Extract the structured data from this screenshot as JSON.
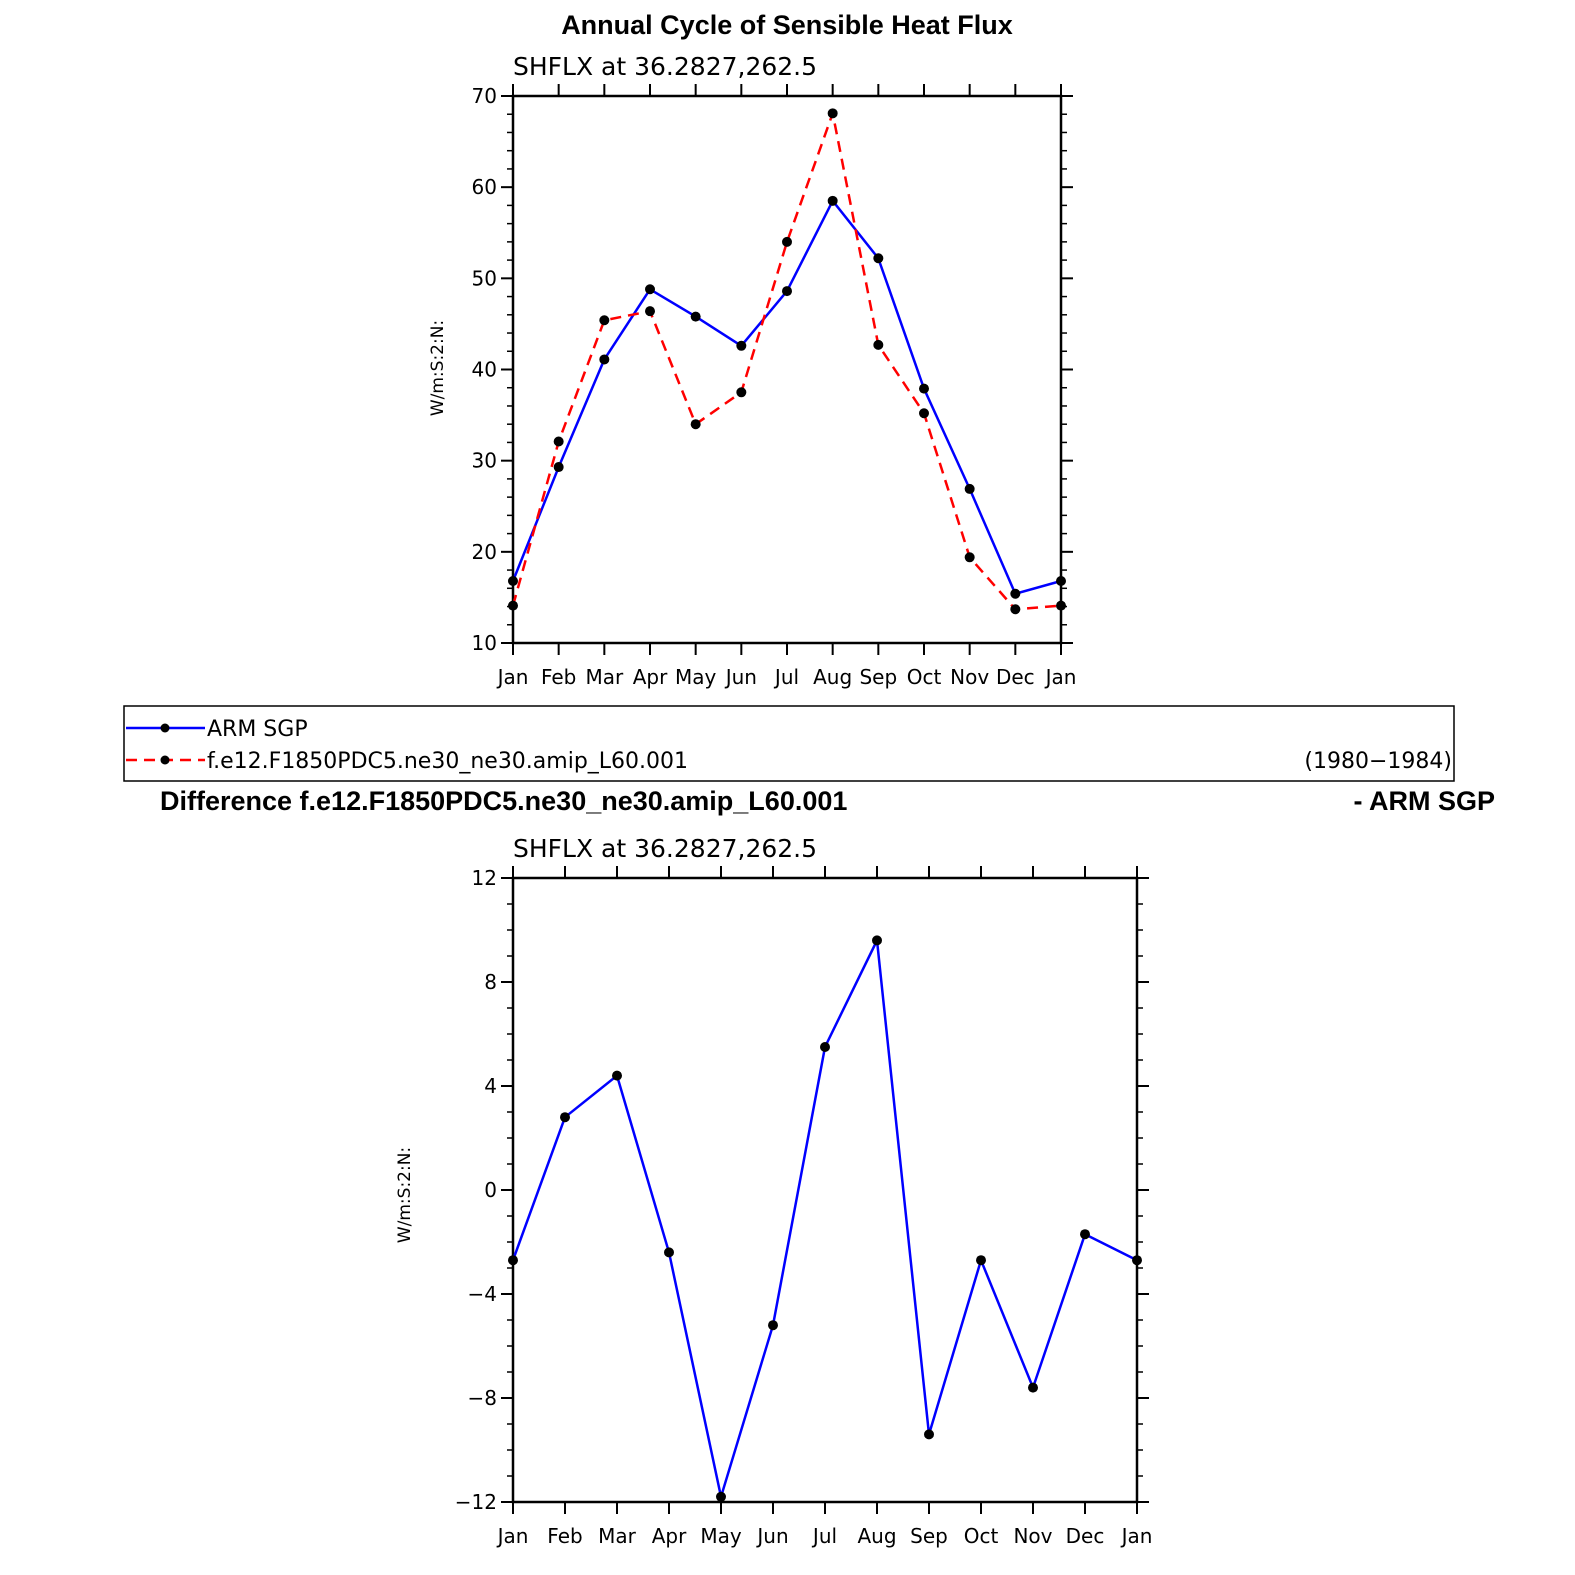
{
  "chart_data": [
    {
      "type": "line",
      "title": "Annual Cycle of Sensible Heat Flux",
      "subtitle": "SHFLX  at  36.2827,262.5",
      "ylabel": "W/m:S:2:N:",
      "ylim": [
        10,
        70
      ],
      "yticks": [
        "10",
        "20",
        "30",
        "40",
        "50",
        "60",
        "70"
      ],
      "categories": [
        "Jan",
        "Feb",
        "Mar",
        "Apr",
        "May",
        "Jun",
        "Jul",
        "Aug",
        "Sep",
        "Oct",
        "Nov",
        "Dec",
        "Jan"
      ],
      "series": [
        {
          "name": "ARM  SGP",
          "color": "#0000ff",
          "dash": "solid",
          "values": [
            16.8,
            29.3,
            41.1,
            48.8,
            45.8,
            42.6,
            48.6,
            58.5,
            52.2,
            37.9,
            26.9,
            15.4,
            16.8
          ]
        },
        {
          "name": "f.e12.F1850PDC5.ne30_ne30.amip_L60.001",
          "color": "#ff0000",
          "dash": "dashed",
          "values": [
            14.1,
            32.1,
            45.4,
            46.4,
            34.0,
            37.5,
            54.0,
            68.1,
            42.7,
            35.2,
            19.4,
            13.7,
            14.1
          ]
        }
      ],
      "legend": {
        "entries": [
          "ARM  SGP",
          "f.e12.F1850PDC5.ne30_ne30.amip_L60.001"
        ],
        "period": "(1980−1984)"
      }
    },
    {
      "type": "line",
      "title_left": "Difference f.e12.F1850PDC5.ne30_ne30.amip_L60.001",
      "title_right": "- ARM SGP",
      "subtitle": "SHFLX  at  36.2827,262.5",
      "ylabel": "W/m:S:2:N:",
      "ylim": [
        -12,
        12
      ],
      "yticks": [
        "−12",
        "−8",
        "−4",
        "0",
        "4",
        "8",
        "12"
      ],
      "categories": [
        "Jan",
        "Feb",
        "Mar",
        "Apr",
        "May",
        "Jun",
        "Jul",
        "Aug",
        "Sep",
        "Oct",
        "Nov",
        "Dec",
        "Jan"
      ],
      "series": [
        {
          "color": "#0000ff",
          "values": [
            -2.7,
            2.8,
            4.4,
            -2.4,
            -11.8,
            -5.2,
            5.5,
            9.6,
            -9.4,
            -2.7,
            -7.6,
            -1.7,
            -2.7
          ]
        }
      ]
    }
  ]
}
